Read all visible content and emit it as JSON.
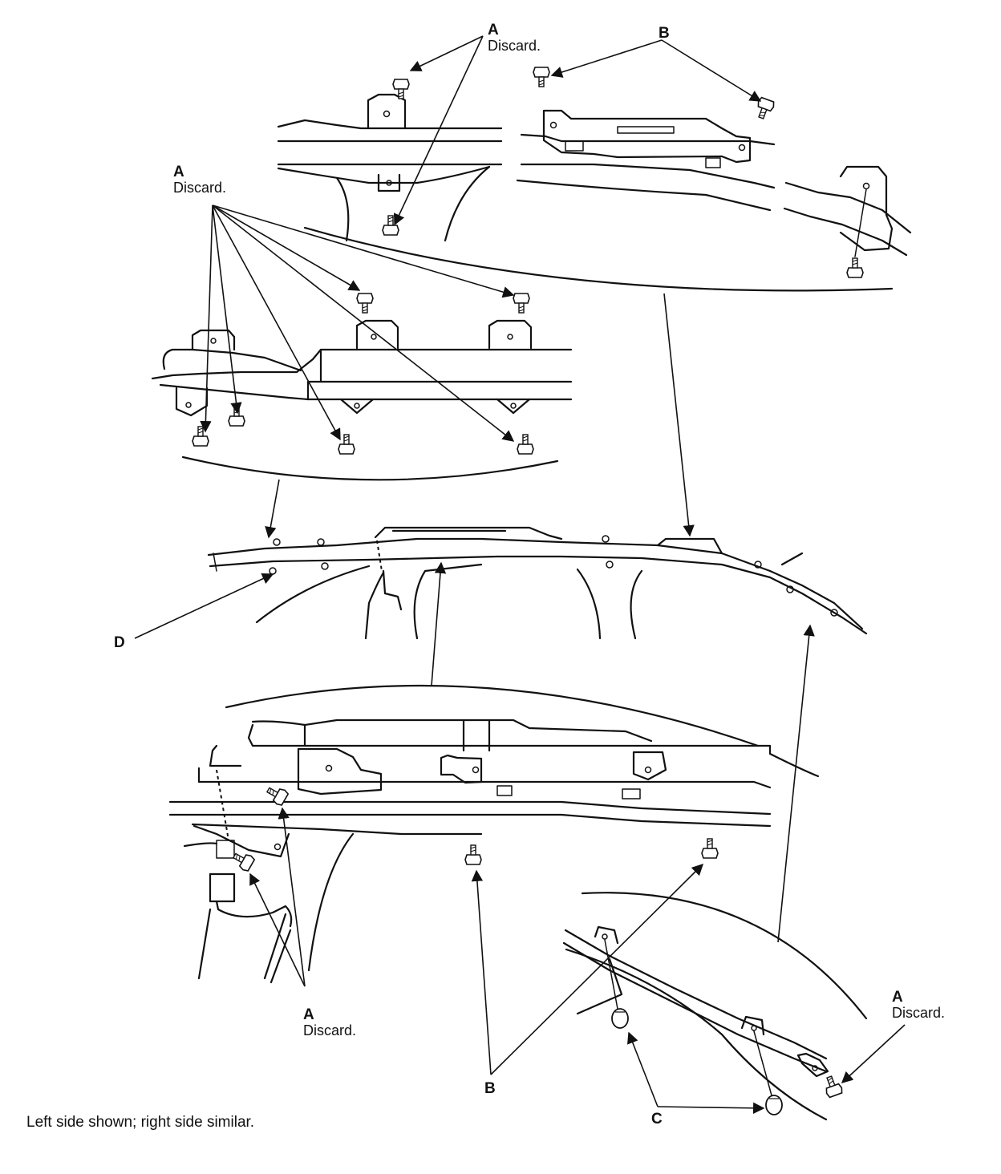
{
  "callouts": {
    "a_top": {
      "letter": "A",
      "note": "Discard."
    },
    "b_top": {
      "letter": "B"
    },
    "a_left": {
      "letter": "A",
      "note": "Discard."
    },
    "d_left": {
      "letter": "D"
    },
    "a_bottom": {
      "letter": "A",
      "note": "Discard."
    },
    "b_bottom": {
      "letter": "B"
    },
    "c_bottom": {
      "letter": "C"
    },
    "a_right": {
      "letter": "A",
      "note": "Discard."
    }
  },
  "caption": "Left side shown; right side similar."
}
